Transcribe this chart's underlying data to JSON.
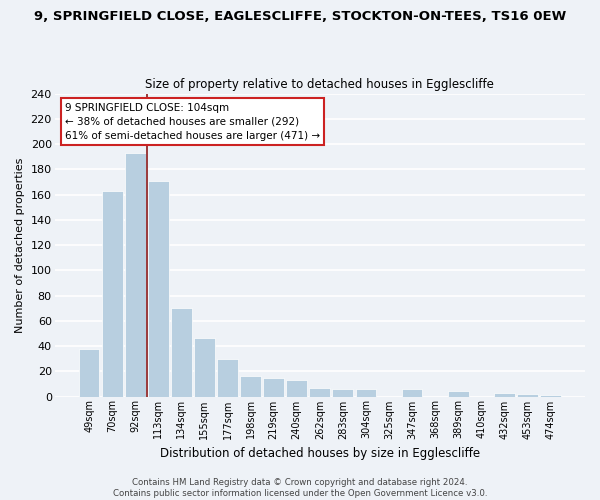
{
  "title1": "9, SPRINGFIELD CLOSE, EAGLESCLIFFE, STOCKTON-ON-TEES, TS16 0EW",
  "title2": "Size of property relative to detached houses in Egglescliffe",
  "xlabel": "Distribution of detached houses by size in Egglescliffe",
  "ylabel": "Number of detached properties",
  "bar_labels": [
    "49sqm",
    "70sqm",
    "92sqm",
    "113sqm",
    "134sqm",
    "155sqm",
    "177sqm",
    "198sqm",
    "219sqm",
    "240sqm",
    "262sqm",
    "283sqm",
    "304sqm",
    "325sqm",
    "347sqm",
    "368sqm",
    "389sqm",
    "410sqm",
    "432sqm",
    "453sqm",
    "474sqm"
  ],
  "bar_values": [
    38,
    163,
    193,
    171,
    70,
    46,
    30,
    16,
    15,
    13,
    7,
    6,
    6,
    0,
    6,
    0,
    4,
    0,
    3,
    2,
    1
  ],
  "bar_color": "#b8cfe0",
  "highlight_line_color": "#8b1a1a",
  "highlight_bar_idx": 3,
  "annotation_text_line1": "9 SPRINGFIELD CLOSE: 104sqm",
  "annotation_text_line2": "← 38% of detached houses are smaller (292)",
  "annotation_text_line3": "61% of semi-detached houses are larger (471) →",
  "ylim": [
    0,
    240
  ],
  "yticks": [
    0,
    20,
    40,
    60,
    80,
    100,
    120,
    140,
    160,
    180,
    200,
    220,
    240
  ],
  "footer_text": "Contains HM Land Registry data © Crown copyright and database right 2024.\nContains public sector information licensed under the Open Government Licence v3.0.",
  "bg_color": "#eef2f7",
  "grid_color": "#ffffff"
}
